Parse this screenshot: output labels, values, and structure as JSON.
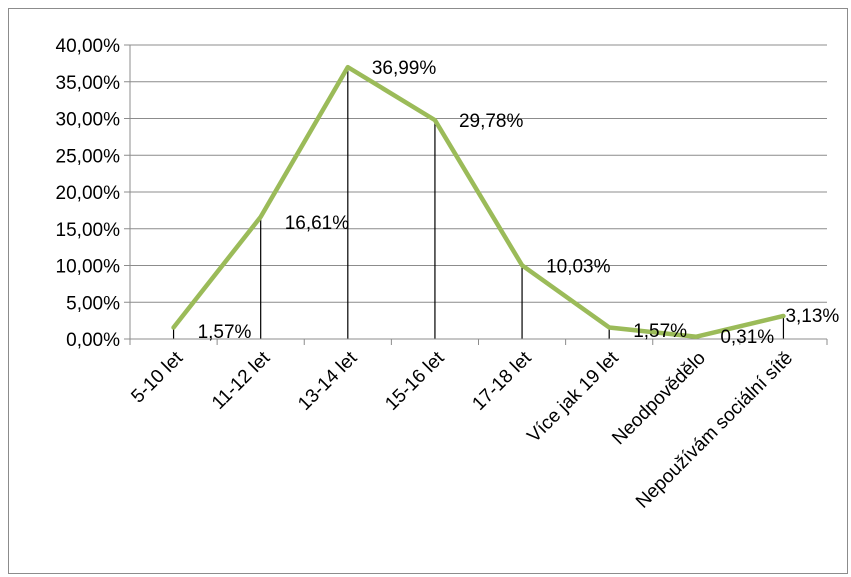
{
  "chart_data": {
    "type": "line",
    "title": "",
    "xlabel": "",
    "ylabel": "",
    "categories": [
      "5-10 let",
      "11-12 let",
      "13-14 let",
      "15-16 let",
      "17-18 let",
      "Více jak 19 let",
      "Neodpovědělo",
      "Nepoužívám sociální sítě"
    ],
    "series": [
      {
        "values": [
          1.57,
          16.61,
          36.99,
          29.78,
          10.03,
          1.57,
          0.31,
          3.13
        ],
        "data_labels": [
          "1,57%",
          "16,61%",
          "36,99%",
          "29,78%",
          "10,03%",
          "1,57%",
          "0,31%",
          "3,13%"
        ],
        "color": "#9bbb59"
      }
    ],
    "ylim": [
      0,
      40
    ],
    "y_ticks": [
      0,
      5,
      10,
      15,
      20,
      25,
      30,
      35,
      40
    ],
    "y_tick_labels": [
      "0,00%",
      "5,00%",
      "10,00%",
      "15,00%",
      "20,00%",
      "25,00%",
      "30,00%",
      "35,00%",
      "40,00%"
    ],
    "grid": true,
    "drop_lines": true,
    "legend": "none"
  }
}
